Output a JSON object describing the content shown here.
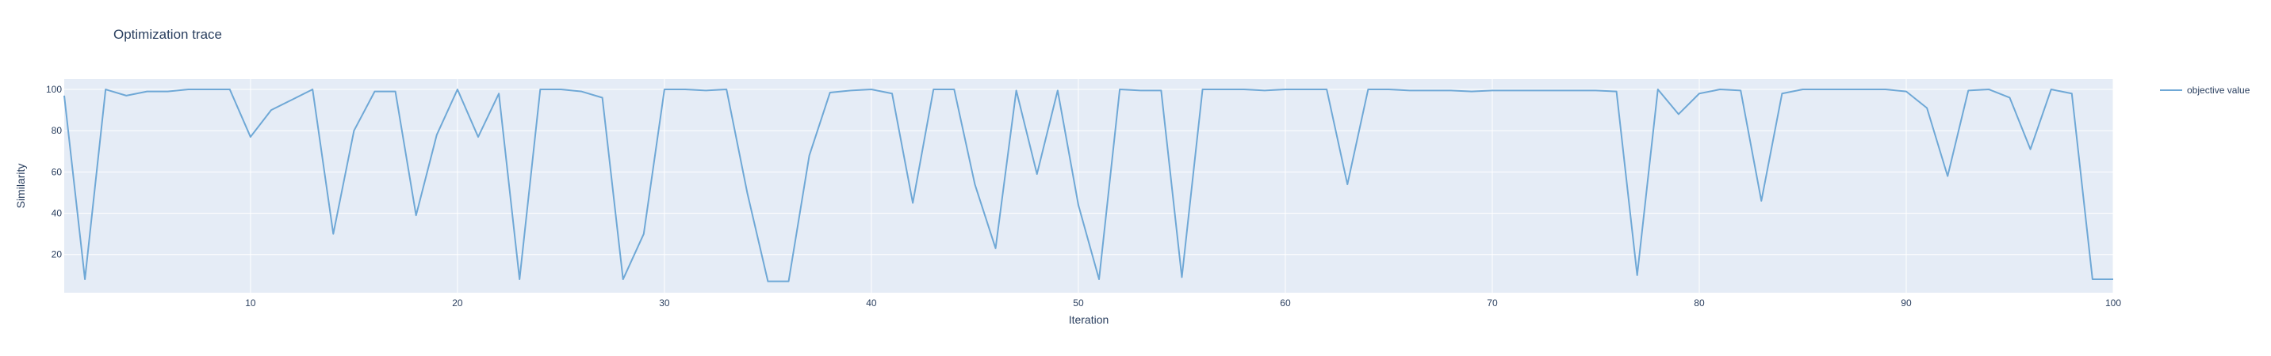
{
  "chart_data": {
    "type": "line",
    "title": "Optimization trace",
    "xlabel": "Iteration",
    "ylabel": "Similarity",
    "xlim": [
      1,
      100
    ],
    "ylim": [
      1.5,
      105
    ],
    "xticks": [
      10,
      20,
      30,
      40,
      50,
      60,
      70,
      80,
      90,
      100
    ],
    "yticks": [
      20,
      40,
      60,
      80,
      100
    ],
    "grid": true,
    "legend_position": "top-right",
    "series": [
      {
        "name": "objective value",
        "color": "#6fa8d6",
        "x": [
          1,
          2,
          3,
          4,
          5,
          6,
          7,
          8,
          9,
          10,
          11,
          12,
          13,
          14,
          15,
          16,
          17,
          18,
          19,
          20,
          21,
          22,
          23,
          24,
          25,
          26,
          27,
          28,
          29,
          30,
          31,
          32,
          33,
          34,
          35,
          36,
          37,
          38,
          39,
          40,
          41,
          42,
          43,
          44,
          45,
          46,
          47,
          48,
          49,
          50,
          51,
          52,
          53,
          54,
          55,
          56,
          57,
          58,
          59,
          60,
          61,
          62,
          63,
          64,
          65,
          66,
          67,
          68,
          69,
          70,
          71,
          72,
          73,
          74,
          75,
          76,
          77,
          78,
          79,
          80,
          81,
          82,
          83,
          84,
          85,
          86,
          87,
          88,
          89,
          90,
          91,
          92,
          93,
          94,
          95,
          96,
          97,
          98,
          99,
          100
        ],
        "values": [
          97,
          8,
          100,
          97,
          99,
          99,
          100,
          100,
          100,
          77,
          90,
          95,
          100,
          30,
          80,
          99,
          99,
          39,
          78,
          100,
          77,
          98,
          8,
          100,
          100,
          99,
          96,
          8,
          30,
          100,
          100,
          99.5,
          100,
          50,
          7,
          7,
          68,
          98.5,
          99.5,
          100,
          98,
          45,
          100,
          100,
          54,
          23,
          99.5,
          59,
          99.5,
          44,
          8,
          100,
          99.5,
          99.5,
          9,
          100,
          100,
          100,
          99.5,
          100,
          100,
          100,
          54,
          100,
          100,
          99.5,
          99.5,
          99.5,
          99,
          99.5,
          99.5,
          99.5,
          99.5,
          99.5,
          99.5,
          99,
          10,
          100,
          88,
          98,
          100,
          99.5,
          46,
          98,
          100,
          100,
          100,
          100,
          100,
          99,
          91,
          58,
          99.5,
          100,
          96,
          71,
          100,
          98,
          8,
          8
        ]
      }
    ]
  }
}
